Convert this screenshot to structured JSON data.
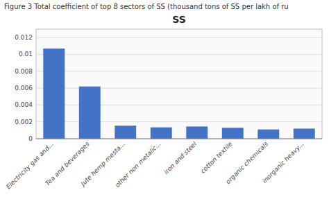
{
  "chart_data": {
    "type": "bar",
    "title": "SS",
    "subtitle": "Figure 3 Total coefficient of top 8 sectors of SS (thousand tons of SS per lakh of ru",
    "categories": [
      "Electricity gas and...",
      "Tea and beverages",
      "Jute hemp mesta...",
      "other non metalic...",
      "iron and steel",
      "cotton textile",
      "organic chemicals",
      "inorganic heavy..."
    ],
    "values": [
      0.0107,
      0.0062,
      0.00155,
      0.00135,
      0.00145,
      0.0013,
      0.0011,
      0.0012
    ],
    "color": "#4472C4",
    "ylim": [
      0,
      0.013
    ],
    "yticks": [
      0,
      0.002,
      0.004,
      0.006,
      0.008,
      0.01,
      0.012
    ],
    "grid": true
  }
}
